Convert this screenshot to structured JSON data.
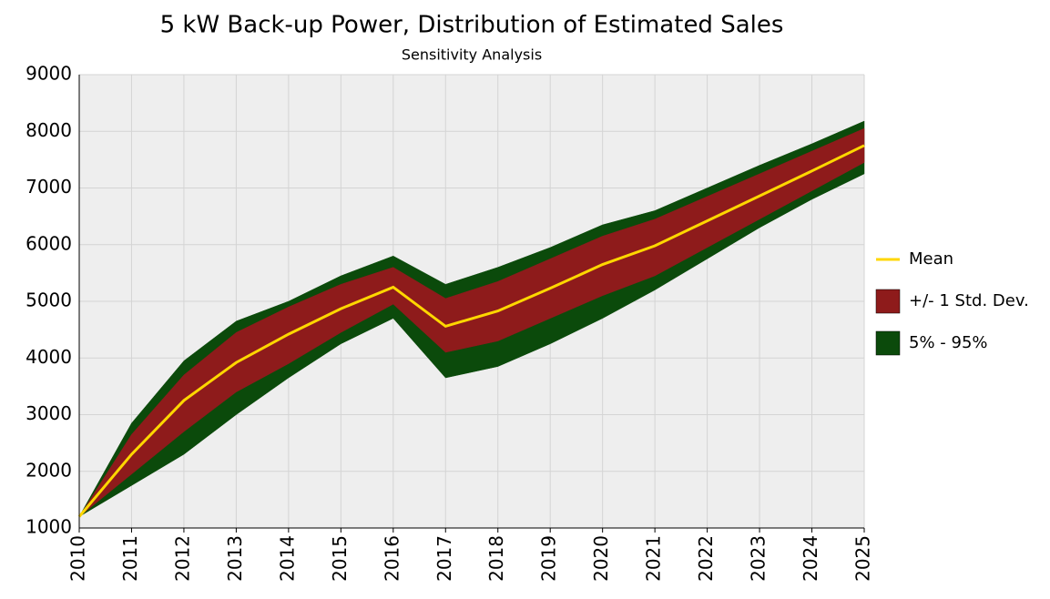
{
  "chart_data": {
    "type": "area",
    "title": "5 kW Back-up Power, Distribution of Estimated Sales",
    "subtitle": "Sensitivity Analysis",
    "x": [
      2010,
      2011,
      2012,
      2013,
      2014,
      2015,
      2016,
      2017,
      2018,
      2019,
      2020,
      2021,
      2022,
      2023,
      2024,
      2025
    ],
    "xlim": [
      2010,
      2025
    ],
    "xticks": [
      2010,
      2011,
      2012,
      2013,
      2014,
      2015,
      2016,
      2017,
      2018,
      2019,
      2020,
      2021,
      2022,
      2023,
      2024,
      2025
    ],
    "ylim": [
      1000,
      9000
    ],
    "yticks": [
      1000,
      2000,
      3000,
      4000,
      5000,
      6000,
      7000,
      8000,
      9000
    ],
    "grid": true,
    "legend": "right",
    "series": [
      {
        "name": "5% - 95%",
        "color": "#0b4a0b",
        "lower": [
          1200,
          1750,
          2300,
          3000,
          3650,
          4250,
          4700,
          3650,
          3850,
          4250,
          4700,
          5200,
          5750,
          6300,
          6800,
          7250
        ],
        "upper": [
          1200,
          2850,
          3950,
          4650,
          5000,
          5450,
          5800,
          5300,
          5600,
          5950,
          6350,
          6600,
          7000,
          7400,
          7780,
          8180
        ]
      },
      {
        "name": "+/- 1 Std. Dev.",
        "color": "#8e1b1b",
        "lower": [
          1200,
          1950,
          2700,
          3400,
          3900,
          4450,
          4950,
          4100,
          4300,
          4700,
          5100,
          5450,
          5950,
          6450,
          6950,
          7450
        ],
        "upper": [
          1200,
          2650,
          3700,
          4450,
          4900,
          5300,
          5600,
          5050,
          5350,
          5750,
          6150,
          6450,
          6850,
          7250,
          7650,
          8050
        ]
      },
      {
        "name": "Mean",
        "color": "#ffd700",
        "values": [
          1200,
          2300,
          3250,
          3920,
          4420,
          4870,
          5250,
          4560,
          4830,
          5230,
          5650,
          5980,
          6420,
          6860,
          7300,
          7750
        ]
      }
    ]
  }
}
